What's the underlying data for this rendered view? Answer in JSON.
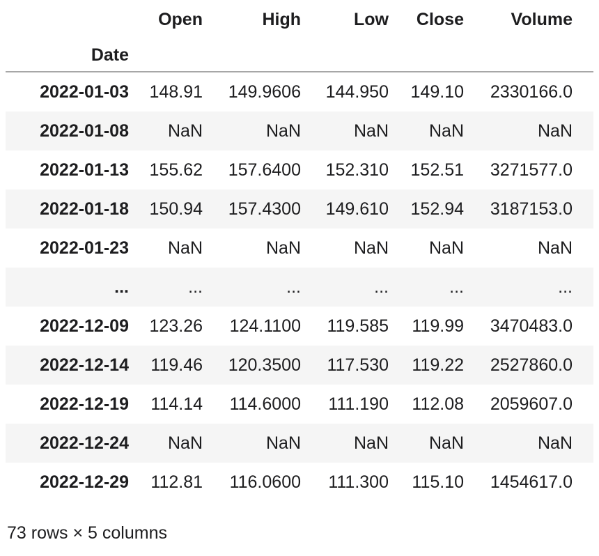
{
  "colors": {
    "background": "#ffffff",
    "row_stripe": "#f5f5f5",
    "header_border": "#a7a7a7",
    "text": "#1d1d1f"
  },
  "table": {
    "index_name": "Date",
    "columns": [
      "Open",
      "High",
      "Low",
      "Close",
      "Volume"
    ],
    "rows": [
      {
        "index": "2022-01-03",
        "values": [
          "148.91",
          "149.9606",
          "144.950",
          "149.10",
          "2330166.0"
        ]
      },
      {
        "index": "2022-01-08",
        "values": [
          "NaN",
          "NaN",
          "NaN",
          "NaN",
          "NaN"
        ]
      },
      {
        "index": "2022-01-13",
        "values": [
          "155.62",
          "157.6400",
          "152.310",
          "152.51",
          "3271577.0"
        ]
      },
      {
        "index": "2022-01-18",
        "values": [
          "150.94",
          "157.4300",
          "149.610",
          "152.94",
          "3187153.0"
        ]
      },
      {
        "index": "2022-01-23",
        "values": [
          "NaN",
          "NaN",
          "NaN",
          "NaN",
          "NaN"
        ]
      },
      {
        "index": "...",
        "values": [
          "...",
          "...",
          "...",
          "...",
          "..."
        ]
      },
      {
        "index": "2022-12-09",
        "values": [
          "123.26",
          "124.1100",
          "119.585",
          "119.99",
          "3470483.0"
        ]
      },
      {
        "index": "2022-12-14",
        "values": [
          "119.46",
          "120.3500",
          "117.530",
          "119.22",
          "2527860.0"
        ]
      },
      {
        "index": "2022-12-19",
        "values": [
          "114.14",
          "114.6000",
          "111.190",
          "112.08",
          "2059607.0"
        ]
      },
      {
        "index": "2022-12-24",
        "values": [
          "NaN",
          "NaN",
          "NaN",
          "NaN",
          "NaN"
        ]
      },
      {
        "index": "2022-12-29",
        "values": [
          "112.81",
          "116.0600",
          "111.300",
          "115.10",
          "1454617.0"
        ]
      }
    ],
    "footer": "73 rows × 5 columns"
  },
  "chart_data": {
    "type": "table",
    "title": "",
    "index_name": "Date",
    "columns": [
      "Open",
      "High",
      "Low",
      "Close",
      "Volume"
    ],
    "rows": [
      [
        "2022-01-03",
        148.91,
        149.9606,
        144.95,
        149.1,
        2330166.0
      ],
      [
        "2022-01-08",
        null,
        null,
        null,
        null,
        null
      ],
      [
        "2022-01-13",
        155.62,
        157.64,
        152.31,
        152.51,
        3271577.0
      ],
      [
        "2022-01-18",
        150.94,
        157.43,
        149.61,
        152.94,
        3187153.0
      ],
      [
        "2022-01-23",
        null,
        null,
        null,
        null,
        null
      ],
      [
        "...",
        "...",
        "...",
        "...",
        "...",
        "..."
      ],
      [
        "2022-12-09",
        123.26,
        124.11,
        119.585,
        119.99,
        3470483.0
      ],
      [
        "2022-12-14",
        119.46,
        120.35,
        117.53,
        119.22,
        2527860.0
      ],
      [
        "2022-12-19",
        114.14,
        114.6,
        111.19,
        112.08,
        2059607.0
      ],
      [
        "2022-12-24",
        null,
        null,
        null,
        null,
        null
      ],
      [
        "2022-12-29",
        112.81,
        116.06,
        111.3,
        115.1,
        1454617.0
      ]
    ],
    "total_shape_note": "73 rows × 5 columns",
    "layout": {
      "striped_rows": true,
      "truncated_middle": true
    }
  }
}
